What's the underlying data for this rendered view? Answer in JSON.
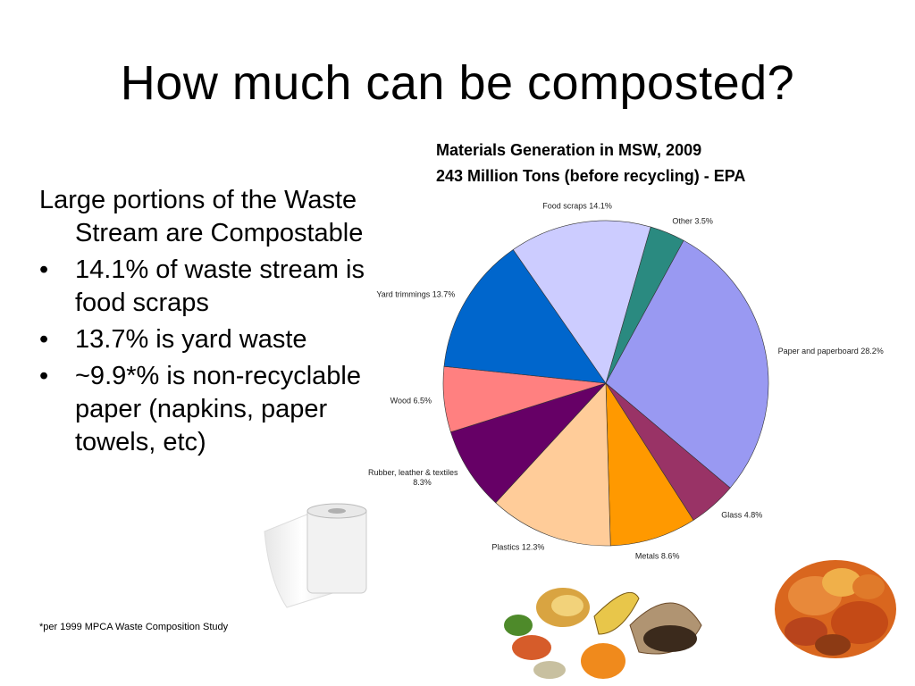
{
  "slide": {
    "title": "How much can be composted?",
    "chart_heading_line1": "Materials Generation in MSW, 2009",
    "chart_heading_line2": "243 Million Tons (before recycling) - EPA",
    "intro": "Large portions of the Waste Stream are Compostable",
    "bullets": [
      "14.1% of waste stream is food scraps",
      "13.7% is yard waste",
      "~9.9*% is non-recyclable paper (napkins, paper towels, etc)"
    ],
    "bullet_symbol": "•",
    "footnote": "*per 1999 MPCA Waste Composition Study"
  },
  "images": {
    "left": "paper-towel-roll",
    "bottom_center": "food-scraps",
    "bottom_right": "autumn-leaves"
  },
  "chart_data": {
    "type": "pie",
    "title": "",
    "slices": [
      {
        "name": "Other",
        "value": 3.5,
        "label": "Other 3.5%",
        "color": "#2a8a80"
      },
      {
        "name": "Paper and paperboard",
        "value": 28.2,
        "label": "Paper and paperboard 28.2%",
        "color": "#9999f2"
      },
      {
        "name": "Glass",
        "value": 4.8,
        "label": "Glass 4.8%",
        "color": "#993366"
      },
      {
        "name": "Metals",
        "value": 8.6,
        "label": "Metals 8.6%",
        "color": "#ff9900"
      },
      {
        "name": "Plastics",
        "value": 12.3,
        "label": "Plastics 12.3%",
        "color": "#ffcc99"
      },
      {
        "name": "Rubber, leather & textiles",
        "value": 8.3,
        "label": "Rubber, leather & textiles 8.3%",
        "color": "#660066"
      },
      {
        "name": "Wood",
        "value": 6.5,
        "label": "Wood 6.5%",
        "color": "#ff8080"
      },
      {
        "name": "Yard trimmings",
        "value": 13.7,
        "label": "Yard trimmings 13.7%",
        "color": "#0066cc"
      },
      {
        "name": "Food scraps",
        "value": 14.1,
        "label": "Food scraps 14.1%",
        "color": "#ccccff"
      }
    ],
    "start_angle_deg": 16,
    "direction": "clockwise"
  }
}
